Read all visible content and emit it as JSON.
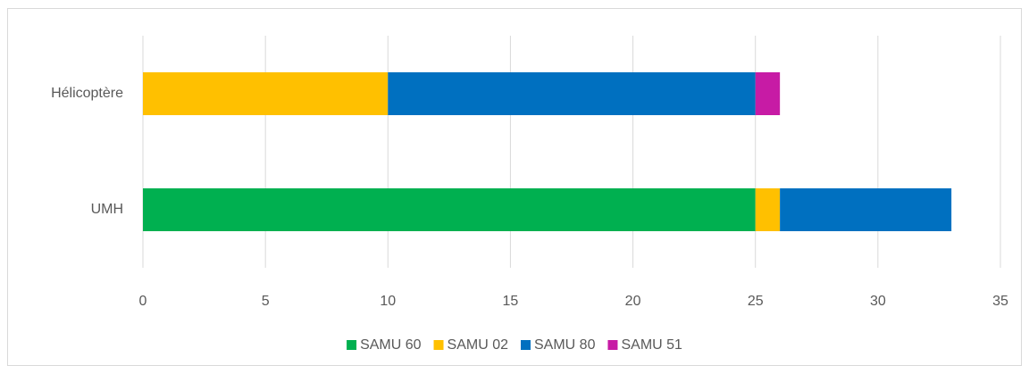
{
  "chart_data": {
    "type": "bar",
    "orientation": "horizontal",
    "stacked": true,
    "categories": [
      "Hélicoptère",
      "UMH"
    ],
    "series": [
      {
        "name": "SAMU 60",
        "color": "#00b050",
        "values": [
          0,
          25
        ]
      },
      {
        "name": "SAMU 02",
        "color": "#ffc000",
        "values": [
          10,
          1
        ]
      },
      {
        "name": "SAMU 80",
        "color": "#0070c0",
        "values": [
          15,
          7
        ]
      },
      {
        "name": "SAMU 51",
        "color": "#c71ba5",
        "values": [
          1,
          0
        ]
      }
    ],
    "xlim": [
      0,
      35
    ],
    "xticks": [
      0,
      5,
      10,
      15,
      20,
      25,
      30,
      35
    ],
    "grid": true,
    "legend": "bottom"
  }
}
